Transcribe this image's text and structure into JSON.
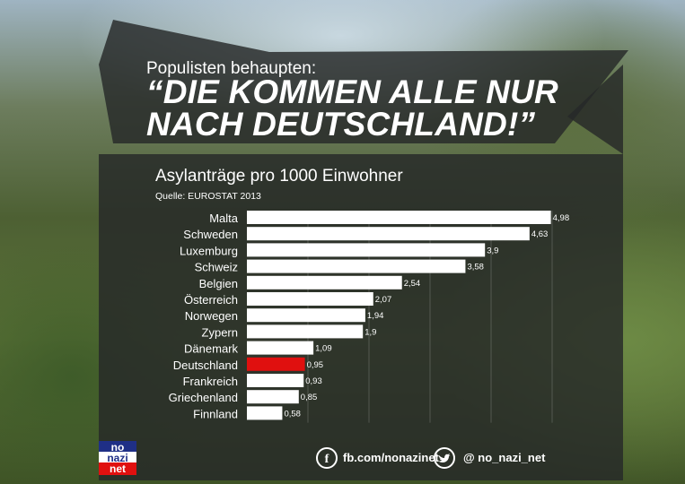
{
  "header": {
    "subtitle": "Populisten behaupten:",
    "headline_line1": "“DIE KOMMEN ALLE NUR",
    "headline_line2": "NACH DEUTSCHLAND!”"
  },
  "chart_data": {
    "type": "bar",
    "orientation": "horizontal",
    "title": "Asylanträge pro 1000 Einwohner",
    "source": "Quelle: EUROSTAT 2013",
    "categories": [
      "Malta",
      "Schweden",
      "Luxemburg",
      "Schweiz",
      "Belgien",
      "Österreich",
      "Norwegen",
      "Zypern",
      "Dänemark",
      "Deutschland",
      "Frankreich",
      "Griechenland",
      "Finnland"
    ],
    "values": [
      4.98,
      4.63,
      3.9,
      3.58,
      2.54,
      2.07,
      1.94,
      1.9,
      1.09,
      0.95,
      0.93,
      0.85,
      0.58
    ],
    "value_labels": [
      "4,98",
      "4,63",
      "3,9",
      "3,58",
      "2,54",
      "2,07",
      "1,94",
      "1,9",
      "1,09",
      "0,95",
      "0,93",
      "0,85",
      "0,58"
    ],
    "bar_color": "#ffffff",
    "highlight_category": "Deutschland",
    "highlight_color": "#e0100f",
    "xlim": [
      0,
      5
    ],
    "grid": true
  },
  "footer": {
    "logo": {
      "line1": "no",
      "line2": "nazi",
      "line3": "net"
    },
    "facebook_icon": "facebook-icon",
    "facebook_text": "fb.com/nonazinet",
    "twitter_icon": "twitter-icon",
    "twitter_text": "@ no_nazi_net"
  }
}
